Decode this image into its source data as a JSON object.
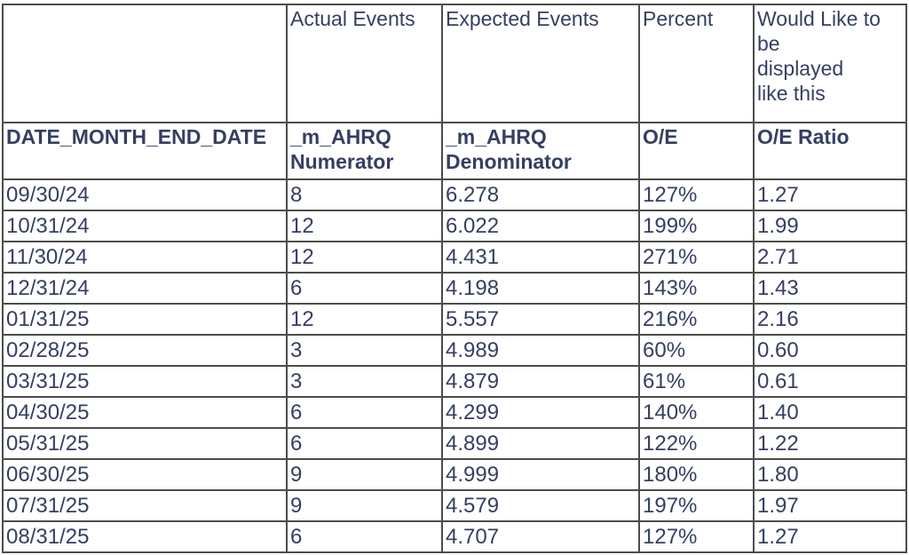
{
  "chart_data": {
    "type": "table",
    "text_color": "#353f62",
    "border_color": "#4c4c4c",
    "header_row_1": [
      "",
      "Actual Events",
      "Expected Events",
      "Percent",
      "Would Like to\nbe\ndisplayed\nlike this"
    ],
    "header_row_2": [
      "DATE_MONTH_END_DATE",
      "_m_AHRQ\nNumerator",
      "_m_AHRQ\nDenominator",
      "O/E",
      "O/E Ratio"
    ],
    "columns": [
      "DATE_MONTH_END_DATE",
      "_m_AHRQ Numerator (Actual Events)",
      "_m_AHRQ Denominator (Expected Events)",
      "O/E (Percent)",
      "O/E Ratio"
    ],
    "rows": [
      [
        "09/30/24",
        "8",
        "6.278",
        "127%",
        "1.27"
      ],
      [
        "10/31/24",
        "12",
        "6.022",
        "199%",
        "1.99"
      ],
      [
        "11/30/24",
        "12",
        "4.431",
        "271%",
        "2.71"
      ],
      [
        "12/31/24",
        "6",
        "4.198",
        "143%",
        "1.43"
      ],
      [
        "01/31/25",
        "12",
        "5.557",
        "216%",
        "2.16"
      ],
      [
        "02/28/25",
        "3",
        "4.989",
        "60%",
        "0.60"
      ],
      [
        "03/31/25",
        "3",
        "4.879",
        "61%",
        "0.61"
      ],
      [
        "04/30/25",
        "6",
        "4.299",
        "140%",
        "1.40"
      ],
      [
        "05/31/25",
        "6",
        "4.899",
        "122%",
        "1.22"
      ],
      [
        "06/30/25",
        "9",
        "4.999",
        "180%",
        "1.80"
      ],
      [
        "07/31/25",
        "9",
        "4.579",
        "197%",
        "1.97"
      ],
      [
        "08/31/25",
        "6",
        "4.707",
        "127%",
        "1.27"
      ]
    ]
  }
}
